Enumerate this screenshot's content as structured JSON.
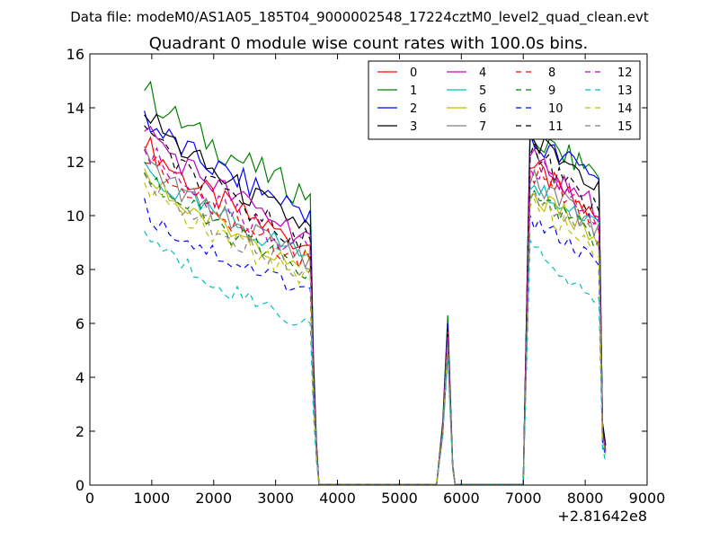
{
  "figure": {
    "suptitle": "Data file: modeM0/AS1A05_185T04_9000002548_17224cztM0_level2_quad_clean.evt"
  },
  "chart_data": {
    "type": "line",
    "title": "Quadrant 0 module wise count rates with 100.0s bins.",
    "xlabel": "",
    "ylabel": "",
    "x_offset_label": "+2.81642e8",
    "xlim": [
      0,
      9000
    ],
    "ylim": [
      0,
      16
    ],
    "xticks": [
      0,
      1000,
      2000,
      3000,
      4000,
      5000,
      6000,
      7000,
      8000,
      9000
    ],
    "yticks": [
      0,
      2,
      4,
      6,
      8,
      10,
      12,
      14,
      16
    ],
    "grid": false,
    "legend_position": "top-right",
    "legend_columns": 4,
    "x_segments": {
      "seg1": [
        880,
        980,
        1080,
        1180,
        1280,
        1380,
        1480,
        1580,
        1680,
        1780,
        1880,
        1980,
        2080,
        2180,
        2280,
        2380,
        2480,
        2580,
        2680,
        2780,
        2880,
        2980,
        3080,
        3180,
        3280,
        3380,
        3480,
        3560,
        3610,
        3660,
        3700
      ],
      "gap1": [
        3700,
        4000,
        4500,
        5000,
        5500,
        5600
      ],
      "spike": [
        5600,
        5700,
        5780,
        5860,
        5900
      ],
      "gap2": [
        5900,
        6500,
        7000
      ],
      "seg2": [
        7000,
        7110,
        7180,
        7260,
        7340,
        7420,
        7500,
        7580,
        7660,
        7740,
        7820,
        7900,
        7980,
        8060,
        8140,
        8220,
        8280,
        8330
      ]
    },
    "series": [
      {
        "name": "0",
        "color": "#ff0000",
        "dashed": false,
        "seg1_start": 12.9,
        "seg1_end": 8.9,
        "spike": 5.6,
        "seg2_start": 11.9,
        "seg2_end": 9.8
      },
      {
        "name": "1",
        "color": "#008000",
        "dashed": false,
        "seg1_start": 14.9,
        "seg1_end": 10.8,
        "spike": 6.3,
        "seg2_start": 12.9,
        "seg2_end": 11.6
      },
      {
        "name": "2",
        "color": "#0000ff",
        "dashed": false,
        "seg1_start": 13.8,
        "seg1_end": 10.2,
        "spike": 6.0,
        "seg2_start": 12.7,
        "seg2_end": 11.5
      },
      {
        "name": "3",
        "color": "#000000",
        "dashed": false,
        "seg1_start": 14.1,
        "seg1_end": 9.6,
        "spike": 5.8,
        "seg2_start": 12.8,
        "seg2_end": 11.3
      },
      {
        "name": "4",
        "color": "#bf00bf",
        "dashed": false,
        "seg1_start": 13.5,
        "seg1_end": 9.3,
        "spike": 5.7,
        "seg2_start": 12.2,
        "seg2_end": 10.2
      },
      {
        "name": "5",
        "color": "#00bfbf",
        "dashed": false,
        "seg1_start": 11.9,
        "seg1_end": 8.6,
        "spike": 5.4,
        "seg2_start": 11.2,
        "seg2_end": 9.6
      },
      {
        "name": "6",
        "color": "#bfbf00",
        "dashed": false,
        "seg1_start": 11.6,
        "seg1_end": 8.3,
        "spike": 5.3,
        "seg2_start": 10.9,
        "seg2_end": 9.2
      },
      {
        "name": "7",
        "color": "#808080",
        "dashed": false,
        "seg1_start": 12.2,
        "seg1_end": 8.5,
        "spike": 5.4,
        "seg2_start": 11.4,
        "seg2_end": 9.5
      },
      {
        "name": "8",
        "color": "#ff0000",
        "dashed": true,
        "seg1_start": 12.4,
        "seg1_end": 8.4,
        "spike": 5.5,
        "seg2_start": 11.7,
        "seg2_end": 9.7
      },
      {
        "name": "9",
        "color": "#008000",
        "dashed": true,
        "seg1_start": 11.8,
        "seg1_end": 8.0,
        "spike": 5.2,
        "seg2_start": 11.0,
        "seg2_end": 9.1
      },
      {
        "name": "10",
        "color": "#0000ff",
        "dashed": true,
        "seg1_start": 10.3,
        "seg1_end": 7.3,
        "spike": 5.0,
        "seg2_start": 10.0,
        "seg2_end": 8.1
      },
      {
        "name": "11",
        "color": "#000000",
        "dashed": true,
        "seg1_start": 13.3,
        "seg1_end": 9.1,
        "spike": 5.6,
        "seg2_start": 12.5,
        "seg2_end": 10.1
      },
      {
        "name": "12",
        "color": "#bf00bf",
        "dashed": true,
        "seg1_start": 12.7,
        "seg1_end": 8.7,
        "spike": 5.5,
        "seg2_start": 12.0,
        "seg2_end": 9.8
      },
      {
        "name": "13",
        "color": "#00bfbf",
        "dashed": true,
        "seg1_start": 9.5,
        "seg1_end": 6.0,
        "spike": 4.8,
        "seg2_start": 8.9,
        "seg2_end": 6.8
      },
      {
        "name": "14",
        "color": "#bfbf00",
        "dashed": true,
        "seg1_start": 11.3,
        "seg1_end": 7.8,
        "spike": 5.2,
        "seg2_start": 10.6,
        "seg2_end": 8.6
      },
      {
        "name": "15",
        "color": "#808080",
        "dashed": true,
        "seg1_start": 11.6,
        "seg1_end": 8.0,
        "spike": 5.3,
        "seg2_start": 10.9,
        "seg2_end": 9.0
      }
    ]
  }
}
